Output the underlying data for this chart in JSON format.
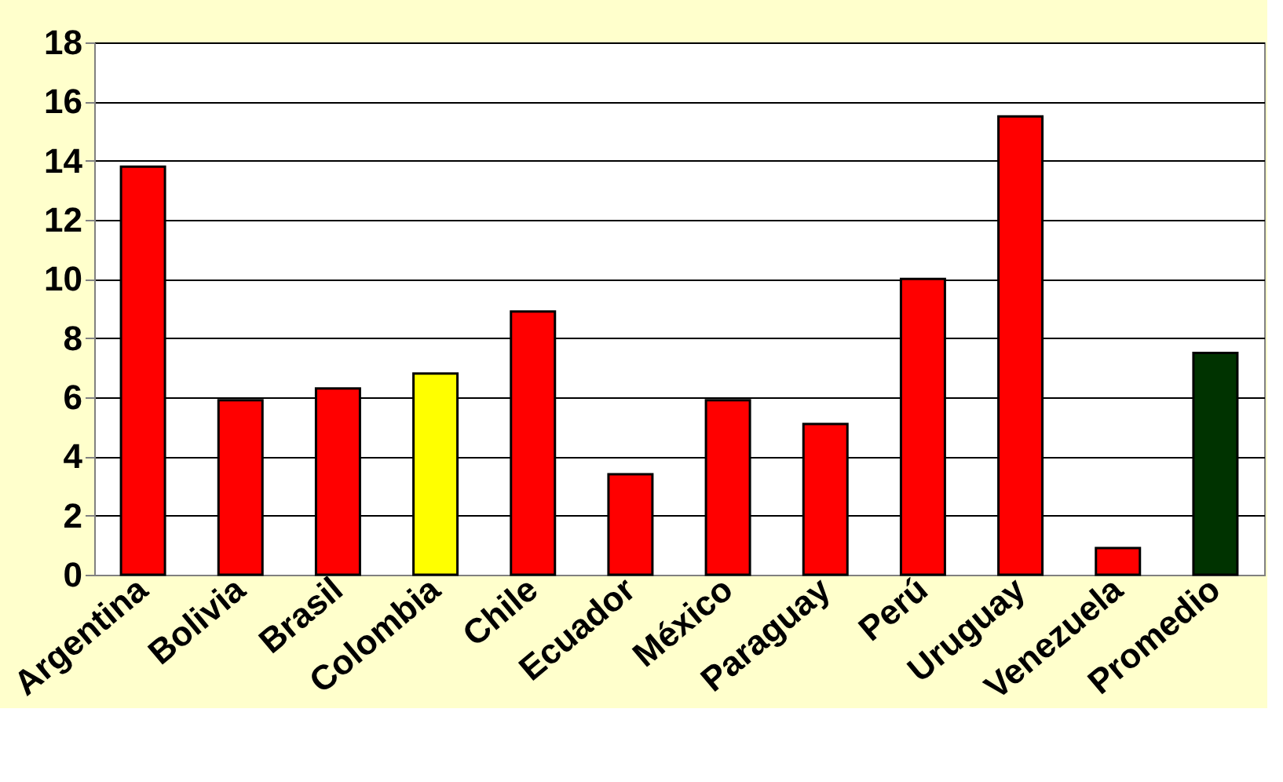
{
  "chart_data": {
    "type": "bar",
    "categories": [
      "Argentina",
      "Bolivia",
      "Brasil",
      "Colombia",
      "Chile",
      "Ecuador",
      "México",
      "Paraguay",
      "Perú",
      "Uruguay",
      "Venezuela",
      "Promedio"
    ],
    "values": [
      13.8,
      5.9,
      6.3,
      6.8,
      8.9,
      3.4,
      5.9,
      5.1,
      10.0,
      15.5,
      0.9,
      7.5
    ],
    "colors": [
      "#ff0000",
      "#ff0000",
      "#ff0000",
      "#ffff00",
      "#ff0000",
      "#ff0000",
      "#ff0000",
      "#ff0000",
      "#ff0000",
      "#ff0000",
      "#ff0000",
      "#003300"
    ],
    "ylim": [
      0,
      18
    ],
    "yticks": [
      0,
      2,
      4,
      6,
      8,
      10,
      12,
      14,
      16,
      18
    ],
    "grid": "y"
  }
}
